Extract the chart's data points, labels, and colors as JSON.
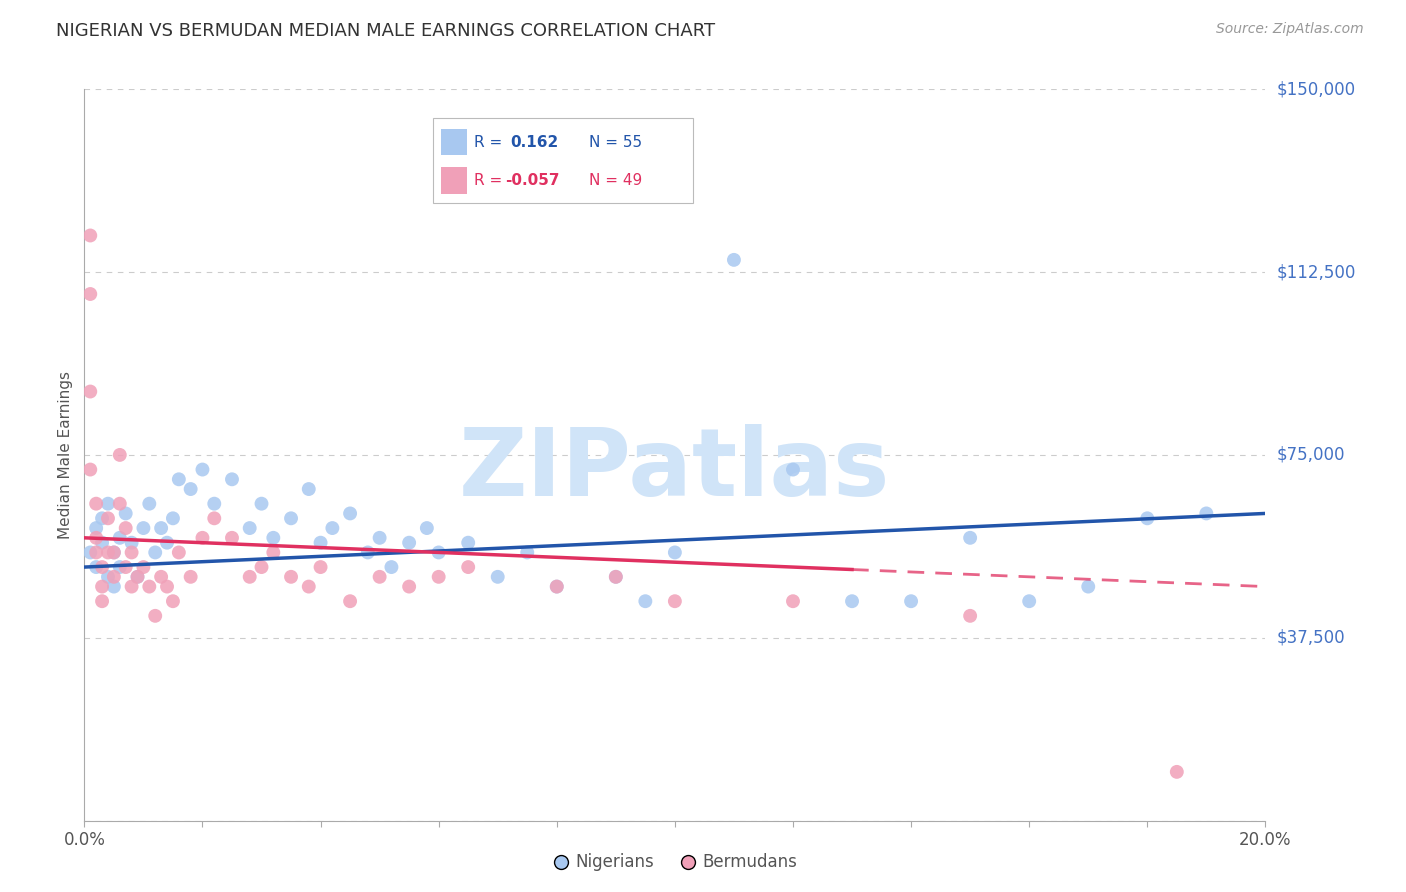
{
  "title": "NIGERIAN VS BERMUDAN MEDIAN MALE EARNINGS CORRELATION CHART",
  "source": "Source: ZipAtlas.com",
  "ylabel": "Median Male Earnings",
  "xlim": [
    0.0,
    0.2
  ],
  "ylim": [
    0,
    150000
  ],
  "yticks": [
    0,
    37500,
    75000,
    112500,
    150000
  ],
  "ytick_labels": [
    "",
    "$37,500",
    "$75,000",
    "$112,500",
    "$150,000"
  ],
  "xticks": [
    0.0,
    0.02,
    0.04,
    0.06,
    0.08,
    0.1,
    0.12,
    0.14,
    0.16,
    0.18,
    0.2
  ],
  "blue_R": 0.162,
  "blue_N": 55,
  "pink_R": -0.057,
  "pink_N": 49,
  "legend_label_blue": "Nigerians",
  "legend_label_pink": "Bermudans",
  "blue_color": "#a8c8f0",
  "pink_color": "#f0a0b8",
  "blue_line_color": "#2255aa",
  "pink_line_color": "#e03060",
  "title_color": "#333333",
  "axis_label_color": "#555555",
  "ytick_color": "#4472c4",
  "grid_color": "#cccccc",
  "watermark": "ZIPatlas",
  "watermark_color": "#d0e4f8",
  "blue_x": [
    0.001,
    0.002,
    0.002,
    0.003,
    0.003,
    0.004,
    0.004,
    0.005,
    0.005,
    0.006,
    0.006,
    0.007,
    0.008,
    0.009,
    0.01,
    0.011,
    0.012,
    0.013,
    0.014,
    0.015,
    0.016,
    0.018,
    0.02,
    0.022,
    0.025,
    0.028,
    0.03,
    0.032,
    0.035,
    0.038,
    0.04,
    0.042,
    0.045,
    0.048,
    0.05,
    0.052,
    0.055,
    0.058,
    0.06,
    0.065,
    0.07,
    0.075,
    0.08,
    0.09,
    0.095,
    0.1,
    0.11,
    0.12,
    0.13,
    0.14,
    0.15,
    0.16,
    0.17,
    0.18,
    0.19
  ],
  "blue_y": [
    55000,
    60000,
    52000,
    57000,
    62000,
    50000,
    65000,
    55000,
    48000,
    58000,
    52000,
    63000,
    57000,
    50000,
    60000,
    65000,
    55000,
    60000,
    57000,
    62000,
    70000,
    68000,
    72000,
    65000,
    70000,
    60000,
    65000,
    58000,
    62000,
    68000,
    57000,
    60000,
    63000,
    55000,
    58000,
    52000,
    57000,
    60000,
    55000,
    57000,
    50000,
    55000,
    48000,
    50000,
    45000,
    55000,
    115000,
    72000,
    45000,
    45000,
    58000,
    45000,
    48000,
    62000,
    63000
  ],
  "pink_x": [
    0.001,
    0.001,
    0.001,
    0.001,
    0.002,
    0.002,
    0.002,
    0.003,
    0.003,
    0.003,
    0.004,
    0.004,
    0.005,
    0.005,
    0.006,
    0.006,
    0.007,
    0.007,
    0.008,
    0.008,
    0.009,
    0.01,
    0.011,
    0.012,
    0.013,
    0.014,
    0.015,
    0.016,
    0.018,
    0.02,
    0.022,
    0.025,
    0.028,
    0.03,
    0.032,
    0.035,
    0.038,
    0.04,
    0.045,
    0.05,
    0.055,
    0.06,
    0.065,
    0.08,
    0.09,
    0.1,
    0.12,
    0.15,
    0.185
  ],
  "pink_y": [
    120000,
    108000,
    88000,
    72000,
    65000,
    58000,
    55000,
    52000,
    48000,
    45000,
    62000,
    55000,
    55000,
    50000,
    75000,
    65000,
    60000,
    52000,
    48000,
    55000,
    50000,
    52000,
    48000,
    42000,
    50000,
    48000,
    45000,
    55000,
    50000,
    58000,
    62000,
    58000,
    50000,
    52000,
    55000,
    50000,
    48000,
    52000,
    45000,
    50000,
    48000,
    50000,
    52000,
    48000,
    50000,
    45000,
    45000,
    42000,
    10000
  ]
}
